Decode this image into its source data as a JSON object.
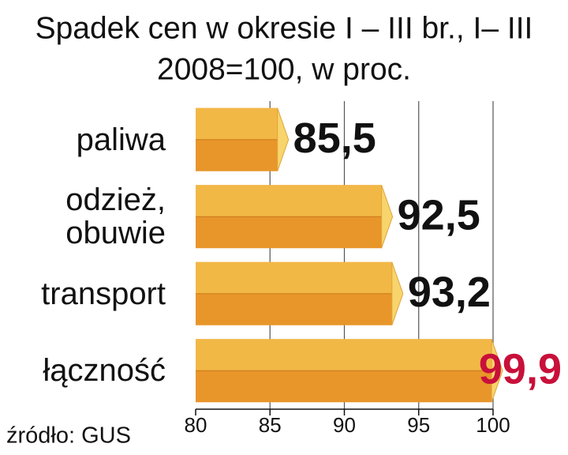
{
  "chart_data": {
    "type": "bar",
    "orientation": "horizontal",
    "title": "Spadek cen w okresie I – III br., I– III",
    "subtitle": "2008=100, w proc.",
    "categories": [
      "paliwa",
      "odzież,\nobuwie",
      "transport",
      "łączność"
    ],
    "values": [
      85.5,
      92.5,
      93.2,
      99.9
    ],
    "value_labels": [
      "85,5",
      "92,5",
      "93,2",
      "99,9"
    ],
    "value_label_colors": [
      "#111111",
      "#111111",
      "#111111",
      "#c8103a"
    ],
    "color": "#e8952a",
    "xlim": [
      80,
      100
    ],
    "xticks": [
      80,
      85,
      90,
      95,
      100
    ],
    "grid": true,
    "source": "źródło: GUS"
  }
}
